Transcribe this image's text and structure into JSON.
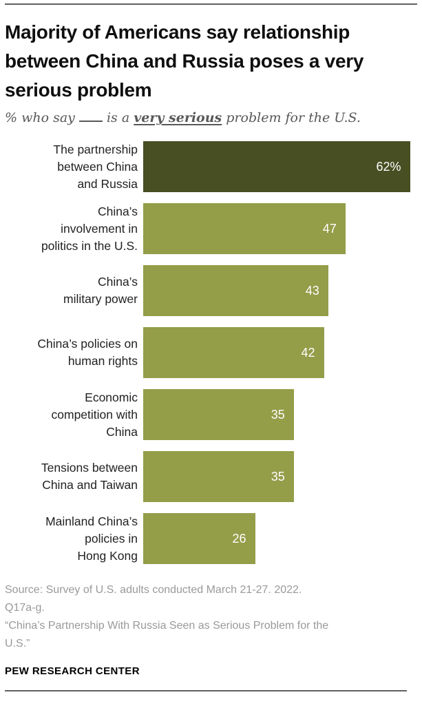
{
  "header": {
    "title_lines": [
      "Majority of Americans say relationship",
      "between China and Russia poses a very",
      "serious problem"
    ],
    "subtitle": {
      "prefix": "% who say",
      "blank": "__",
      "middle": "is a",
      "emphasis": "very serious",
      "suffix": "problem for the U.S."
    }
  },
  "chart_data": {
    "type": "bar",
    "orientation": "horizontal",
    "unit": "percent",
    "title": "Majority of Americans say relationship between China and Russia poses a very serious problem",
    "subtitle": "% who say __ is a very serious problem for the U.S.",
    "categories": [
      "The partnership between China and Russia",
      "China’s involvement in politics in the U.S.",
      "China’s military power",
      "China’s policies on human rights",
      "Economic competition with China",
      "Tensions between China and Taiwan",
      "Mainland China’s policies in Hong Kong"
    ],
    "category_lines": [
      [
        "The partnership",
        "between China",
        "and Russia"
      ],
      [
        "China’s",
        "involvement in",
        "politics in the U.S."
      ],
      [
        "China’s",
        "military power"
      ],
      [
        "China’s policies on",
        "human rights"
      ],
      [
        "Economic",
        "competition with",
        "China"
      ],
      [
        "Tensions between",
        "China and Taiwan"
      ],
      [
        "Mainland China’s",
        "policies in",
        "Hong Kong"
      ]
    ],
    "values": [
      62,
      47,
      43,
      42,
      35,
      35,
      26
    ],
    "value_labels": [
      "62%",
      "47",
      "43",
      "42",
      "35",
      "35",
      "26"
    ],
    "xlim": [
      0,
      65
    ],
    "grid": false,
    "legend": false,
    "bar_colors": [
      "#474F23",
      "#949D48",
      "#949D48",
      "#949D48",
      "#949D48",
      "#949D48",
      "#949D48"
    ],
    "value_text_color": "#ffffff"
  },
  "footer": {
    "source_lines": [
      "Source: Survey of U.S. adults conducted March 21-27. 2022.",
      "Q17a-g.",
      "“China’s Partnership With Russia Seen as Serious Problem for the",
      "U.S.”"
    ],
    "brand": "PEW RESEARCH CENTER"
  },
  "colors": {
    "rule": "#5f5f5f",
    "title_text": "#0f0f0f",
    "subtitle_text": "#58585a",
    "label_text": "#222222",
    "source_text": "#999999"
  }
}
